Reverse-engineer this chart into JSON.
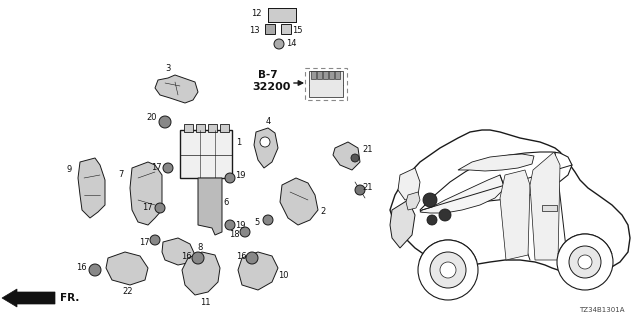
{
  "bg_color": "#ffffff",
  "diagram_ref": "TZ34B1301A",
  "line_color": "#1a1a1a",
  "label_fontsize": 6.0,
  "ref_fontsize": 5.0,
  "fig_w": 6.4,
  "fig_h": 3.2,
  "dpi": 100
}
